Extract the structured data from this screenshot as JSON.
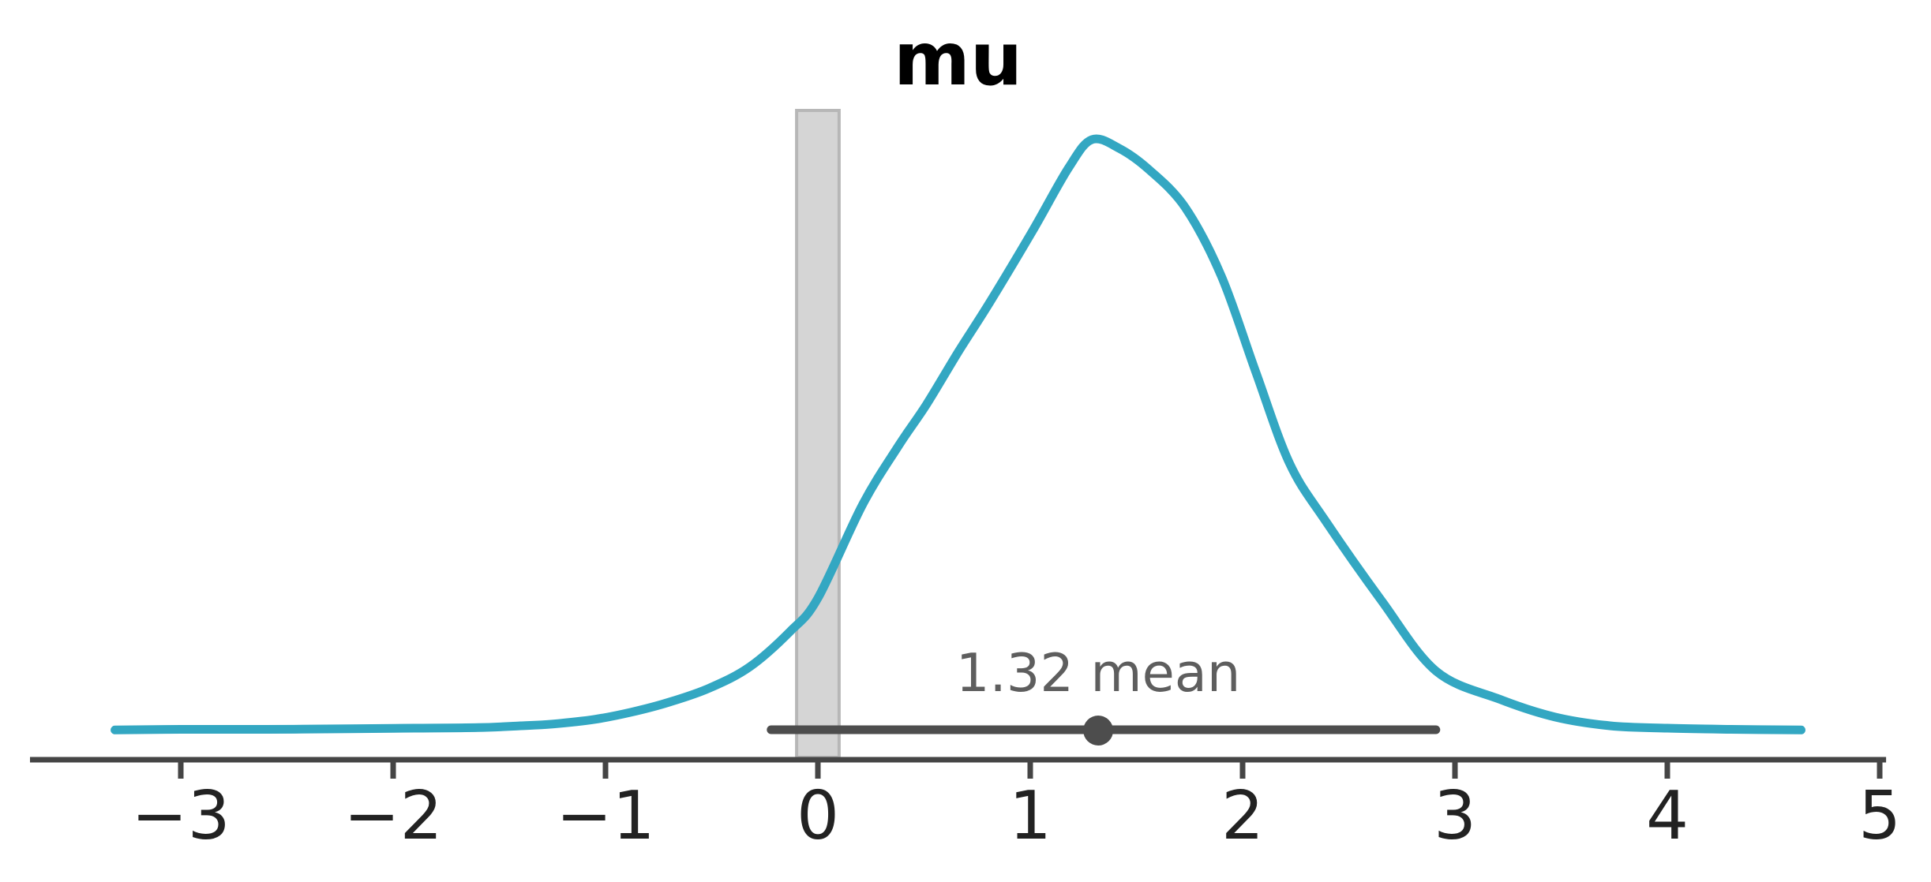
{
  "chart_data": {
    "type": "area",
    "title": "mu",
    "xlabel": "",
    "ylabel": "",
    "xlim": [
      -3.71,
      5.03
    ],
    "grid": false,
    "legend_position": "none",
    "x_tick_values": [
      -3,
      -2,
      -1,
      0,
      1,
      2,
      3,
      4,
      5
    ],
    "x_tick_labels": [
      "−3",
      "−2",
      "−1",
      "0",
      "1",
      "2",
      "3",
      "4",
      "5"
    ],
    "mean": 1.32,
    "mean_label": "1.32 mean",
    "point_interval": {
      "lower": -0.22,
      "upper": 2.91,
      "point": 1.32
    },
    "rope_band": {
      "lower": -0.1,
      "upper": 0.1
    },
    "kde_curve": {
      "x": [
        -3.31,
        -3.0,
        -2.6,
        -2.2,
        -1.9,
        -1.6,
        -1.4,
        -1.25,
        -1.05,
        -0.88,
        -0.7,
        -0.51,
        -0.32,
        -0.13,
        0.0,
        0.21,
        0.38,
        0.51,
        0.66,
        0.81,
        1.01,
        1.18,
        1.29,
        1.42,
        1.56,
        1.73,
        1.9,
        2.06,
        2.22,
        2.39,
        2.65,
        2.91,
        3.21,
        3.47,
        3.73,
        4.0,
        4.3,
        4.63
      ],
      "density": [
        0.001,
        0.002,
        0.002,
        0.003,
        0.004,
        0.005,
        0.008,
        0.011,
        0.019,
        0.031,
        0.048,
        0.072,
        0.108,
        0.168,
        0.224,
        0.382,
        0.482,
        0.551,
        0.64,
        0.725,
        0.845,
        0.952,
        1.0,
        0.985,
        0.949,
        0.885,
        0.769,
        0.609,
        0.453,
        0.355,
        0.222,
        0.101,
        0.053,
        0.023,
        0.008,
        0.004,
        0.002,
        0.001
      ],
      "density_units": "normalized to peak = 1.0"
    },
    "colors": {
      "curve": "#33a7c2",
      "interval": "#4d4d4d",
      "rope_fill": "#d5d5d5",
      "rope_border": "#b7b7b7",
      "axis": "#454545",
      "tick_label": "#222222",
      "mean_text": "#5e5e5e",
      "title": "#000000",
      "background": "#ffffff"
    }
  }
}
